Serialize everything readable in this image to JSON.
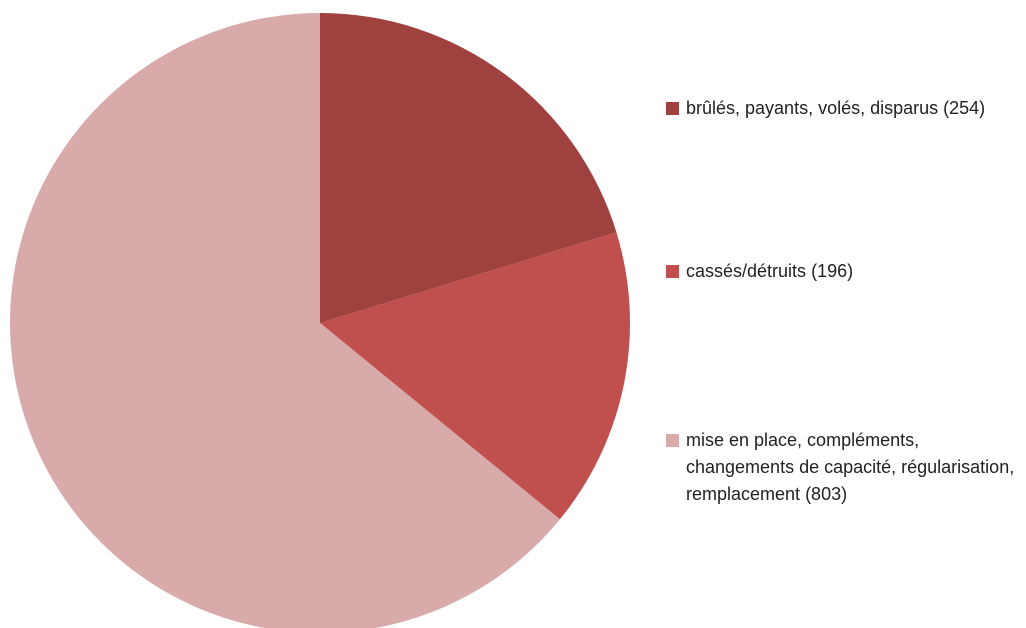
{
  "chart_data": {
    "type": "pie",
    "categories": [
      "brûlés, payants, volés, disparus",
      "cassés/détruits",
      "mise en place, compléments, changements de capacité, régularisation, remplacement"
    ],
    "values": [
      254,
      196,
      803
    ],
    "value_labels": [
      "(254)",
      "(196)",
      "(803)"
    ],
    "colors": [
      "#9e413f",
      "#c0504d",
      "#d9aaaa"
    ],
    "legend": "right"
  }
}
